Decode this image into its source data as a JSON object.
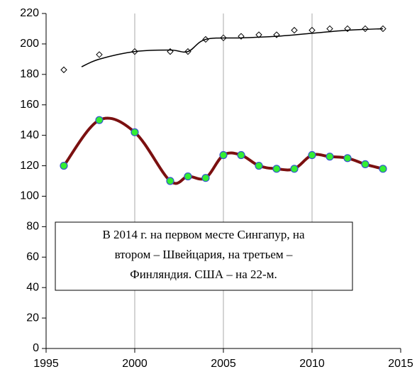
{
  "chart_data": {
    "type": "line",
    "xlim": [
      1995,
      2015
    ],
    "xticks": [
      1995,
      2000,
      2005,
      2010,
      2015
    ],
    "ylim": [
      0,
      220
    ],
    "yticks": [
      0,
      20,
      40,
      60,
      80,
      100,
      120,
      140,
      160,
      180,
      200,
      220
    ],
    "grid": "x",
    "annotation": [
      "В 2014 г. на первом месте Сингапур, на",
      "втором – Швейцария, на третьем –",
      "Финляндия. США – на 22-м."
    ],
    "series": [
      {
        "marker": "diamond",
        "color": "#000000",
        "smooth": false,
        "line": false,
        "x": [
          1996,
          1998,
          2000,
          2002,
          2003,
          2004,
          2005,
          2006,
          2007,
          2008,
          2009,
          2010,
          2011,
          2012,
          2013,
          2014
        ],
        "values": [
          183,
          193,
          195,
          195,
          195,
          203,
          204,
          205,
          206,
          206,
          209,
          209,
          210,
          210,
          210,
          210
        ]
      },
      {
        "marker": "none",
        "color": "#000000",
        "smooth": true,
        "line": true,
        "x": [
          1997,
          1998,
          2000,
          2002,
          2003,
          2004,
          2006,
          2008,
          2010,
          2012,
          2014
        ],
        "values": [
          185,
          190,
          195,
          196,
          195,
          203,
          204,
          205,
          207,
          209,
          210
        ]
      },
      {
        "marker": "circle",
        "color": "#7b1010",
        "marker_fill": "#33ee33",
        "marker_edge": "#3355cc",
        "smooth": true,
        "line": true,
        "x": [
          1996,
          1998,
          2000,
          2002,
          2003,
          2004,
          2005,
          2006,
          2007,
          2008,
          2009,
          2010,
          2011,
          2012,
          2013,
          2014
        ],
        "values": [
          120,
          150,
          142,
          110,
          113,
          112,
          127,
          127,
          120,
          118,
          118,
          127,
          126,
          125,
          121,
          118
        ]
      }
    ]
  }
}
